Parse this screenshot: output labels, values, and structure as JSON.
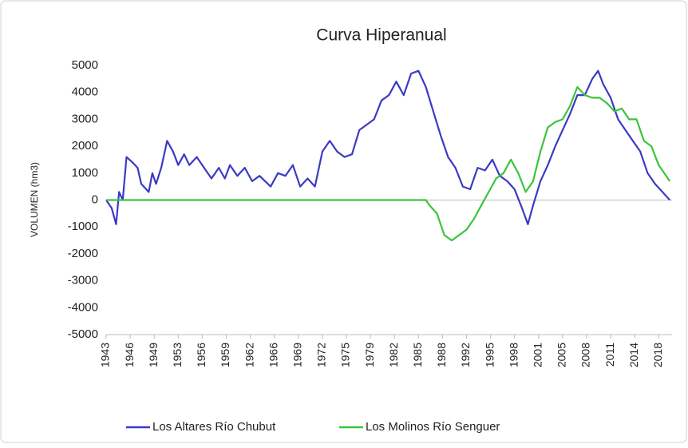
{
  "chart_data": {
    "type": "line",
    "title": "Curva Hiperanual",
    "y_label": "VOLUMEN (hm3)",
    "xlim": [
      1943.25,
      2019.8
    ],
    "ylim": [
      -5000,
      5000
    ],
    "yticks": [
      -5000,
      -4000,
      -3000,
      -2000,
      -1000,
      0,
      1000,
      2000,
      3000,
      4000,
      5000
    ],
    "xticks": [
      {
        "value": 1943.25,
        "label": "1943"
      },
      {
        "value": 1946.5,
        "label": "1946"
      },
      {
        "value": 1949.75,
        "label": "1949"
      },
      {
        "value": 1953,
        "label": "1953"
      },
      {
        "value": 1956.25,
        "label": "1956"
      },
      {
        "value": 1959.5,
        "label": "1959"
      },
      {
        "value": 1962.75,
        "label": "1962"
      },
      {
        "value": 1966,
        "label": "1966"
      },
      {
        "value": 1969.25,
        "label": "1969"
      },
      {
        "value": 1972.5,
        "label": "1972"
      },
      {
        "value": 1975.75,
        "label": "1975"
      },
      {
        "value": 1979,
        "label": "1979"
      },
      {
        "value": 1982.25,
        "label": "1982"
      },
      {
        "value": 1985.5,
        "label": "1985"
      },
      {
        "value": 1988.75,
        "label": "1988"
      },
      {
        "value": 1992,
        "label": "1992"
      },
      {
        "value": 1995.25,
        "label": "1995"
      },
      {
        "value": 1998.5,
        "label": "1998"
      },
      {
        "value": 2001.75,
        "label": "2001"
      },
      {
        "value": 2005,
        "label": "2005"
      },
      {
        "value": 2008.25,
        "label": "2008"
      },
      {
        "value": 2011.5,
        "label": "2011"
      },
      {
        "value": 2014.75,
        "label": "2014"
      },
      {
        "value": 2018,
        "label": "2018"
      }
    ],
    "legend": "bottom",
    "series": [
      {
        "name": "Los Altares Río Chubut",
        "color": "#3a3ac4",
        "x": [
          1943.25,
          1944,
          1944.6,
          1945,
          1945.5,
          1946,
          1946.8,
          1947.5,
          1948,
          1949,
          1949.5,
          1950,
          1950.7,
          1951.5,
          1952.3,
          1953,
          1953.8,
          1954.5,
          1955.5,
          1956.5,
          1957.5,
          1958.5,
          1959.3,
          1960,
          1961,
          1962,
          1963,
          1964,
          1965.5,
          1966.5,
          1967.5,
          1968.5,
          1969.5,
          1970.5,
          1971.5,
          1972.5,
          1973.5,
          1974.5,
          1975.5,
          1976.5,
          1977.5,
          1978.5,
          1979.5,
          1980.5,
          1981.5,
          1982.5,
          1983.5,
          1984.5,
          1985.5,
          1986.5,
          1987.5,
          1988.5,
          1989.5,
          1990.5,
          1991.5,
          1992.5,
          1993.5,
          1994.5,
          1995.5,
          1996.5,
          1997.5,
          1998.5,
          1999.5,
          2000.3,
          2001,
          2002,
          2003,
          2004,
          2005,
          2006,
          2007,
          2008,
          2009,
          2009.8,
          2010.5,
          2011.5,
          2012.5,
          2013.5,
          2014.5,
          2015.5,
          2016.5,
          2017.5,
          2018.5,
          2019.5
        ],
        "values": [
          0,
          -300,
          -900,
          300,
          0,
          1600,
          1400,
          1200,
          600,
          300,
          1000,
          600,
          1200,
          2200,
          1800,
          1300,
          1700,
          1300,
          1600,
          1200,
          800,
          1200,
          800,
          1300,
          900,
          1200,
          700,
          900,
          500,
          1000,
          900,
          1300,
          500,
          800,
          500,
          1800,
          2200,
          1800,
          1600,
          1700,
          2600,
          2800,
          3000,
          3700,
          3900,
          4400,
          3900,
          4700,
          4800,
          4200,
          3300,
          2400,
          1600,
          1200,
          500,
          400,
          1200,
          1100,
          1500,
          900,
          700,
          400,
          -300,
          -900,
          -200,
          700,
          1300,
          2000,
          2600,
          3200,
          3900,
          3900,
          4500,
          4800,
          4300,
          3800,
          3000,
          2600,
          2200,
          1800,
          1000,
          600,
          300,
          0
        ]
      },
      {
        "name": "Los Molinos Río Senguer",
        "color": "#3cc43c",
        "x": [
          1943.25,
          1986.5,
          1987,
          1988,
          1989,
          1990,
          1991,
          1992,
          1993,
          1994,
          1995,
          1996,
          1997,
          1998,
          1999,
          2000,
          2001,
          2002,
          2003,
          2004,
          2005,
          2006,
          2007,
          2008,
          2009,
          2010,
          2011,
          2012,
          2013,
          2014,
          2015,
          2016,
          2017,
          2018,
          2019.5
        ],
        "values": [
          0,
          0,
          -200,
          -500,
          -1300,
          -1500,
          -1300,
          -1100,
          -700,
          -200,
          300,
          800,
          1000,
          1500,
          1000,
          300,
          700,
          1800,
          2700,
          2900,
          3000,
          3500,
          4200,
          3900,
          3800,
          3800,
          3600,
          3300,
          3400,
          3000,
          3000,
          2200,
          2000,
          1300,
          700
        ]
      }
    ]
  }
}
